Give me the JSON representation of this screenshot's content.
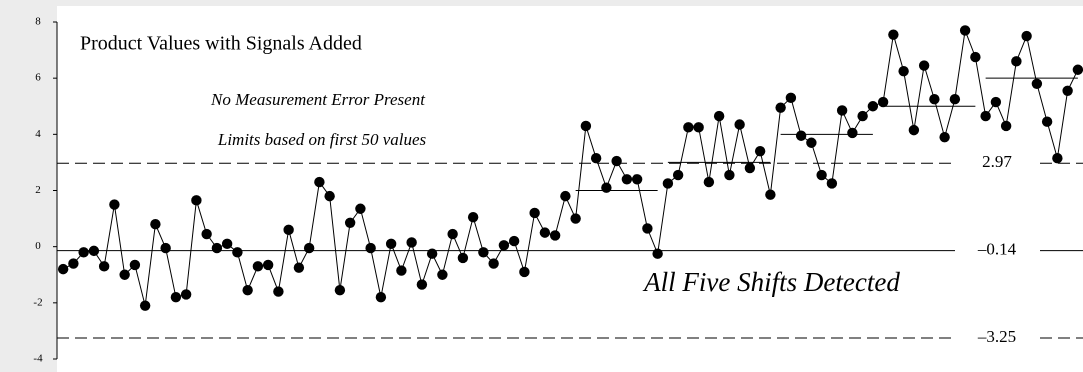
{
  "chart_data": {
    "type": "line",
    "title": "Product Values with Signals Added",
    "annotations": [
      "No Measurement Error Present",
      "Limits based on first 50 values",
      "All Five Shifts Detected"
    ],
    "x": [
      1,
      2,
      3,
      4,
      5,
      6,
      7,
      8,
      9,
      10,
      11,
      12,
      13,
      14,
      15,
      16,
      17,
      18,
      19,
      20,
      21,
      22,
      23,
      24,
      25,
      26,
      27,
      28,
      29,
      30,
      31,
      32,
      33,
      34,
      35,
      36,
      37,
      38,
      39,
      40,
      41,
      42,
      43,
      44,
      45,
      46,
      47,
      48,
      49,
      50,
      51,
      52,
      53,
      54,
      55,
      56,
      57,
      58,
      59,
      60,
      61,
      62,
      63,
      64,
      65,
      66,
      67,
      68,
      69,
      70,
      71,
      72,
      73,
      74,
      75,
      76,
      77,
      78,
      79,
      80,
      81,
      82,
      83,
      84,
      85,
      86,
      87,
      88,
      89,
      90,
      91,
      92,
      93,
      94,
      95,
      96,
      97,
      98,
      99,
      100
    ],
    "series": [
      {
        "color": "#000000",
        "values": [
          -0.8,
          -0.6,
          -0.2,
          -0.15,
          -0.7,
          1.5,
          -1.0,
          -0.65,
          -2.1,
          0.8,
          -0.05,
          -1.8,
          -1.7,
          1.65,
          0.45,
          -0.05,
          0.1,
          -0.2,
          -1.55,
          -0.7,
          -0.65,
          -1.6,
          0.6,
          -0.75,
          -0.05,
          2.3,
          1.8,
          -1.55,
          0.85,
          1.35,
          -0.05,
          -1.8,
          0.1,
          -0.85,
          0.15,
          -1.35,
          -0.25,
          -1.0,
          0.45,
          -0.4,
          1.05,
          -0.2,
          -0.6,
          0.05,
          0.2,
          -0.9,
          1.2,
          0.5,
          0.4,
          1.8,
          1.0,
          4.3,
          3.15,
          2.1,
          3.05,
          2.4,
          2.4,
          0.65,
          -0.25,
          2.25,
          2.55,
          4.25,
          4.25,
          2.3,
          4.65,
          2.55,
          4.35,
          2.8,
          3.4,
          1.85,
          4.95,
          5.3,
          3.95,
          3.7,
          2.55,
          2.25,
          4.85,
          4.05,
          4.65,
          5.0,
          5.15,
          7.55,
          6.25,
          4.15,
          6.45,
          5.25,
          3.9,
          5.25,
          7.7,
          6.75,
          4.65,
          5.15,
          4.3,
          6.6,
          7.5,
          5.8,
          4.45,
          3.15,
          5.55,
          6.3
        ]
      }
    ],
    "limits": [
      {
        "value": 2.97,
        "label": "2.97",
        "style": "dashed"
      },
      {
        "value": -0.14,
        "label": "–0.14",
        "style": "solid"
      },
      {
        "value": -3.25,
        "label": "–3.25",
        "style": "dashed"
      }
    ],
    "shift_levels": [
      {
        "y": 2,
        "x": [
          51,
          59
        ]
      },
      {
        "y": 3,
        "x": [
          60,
          70
        ]
      },
      {
        "y": 4,
        "x": [
          71,
          80
        ]
      },
      {
        "y": 5,
        "x": [
          81,
          90
        ]
      },
      {
        "y": 6,
        "x": [
          91,
          100
        ]
      }
    ],
    "xlim": [
      0.4,
      100.5
    ],
    "ylim": [
      -4,
      8
    ],
    "yticks": [
      -4,
      -2,
      0,
      2,
      4,
      6,
      8
    ]
  }
}
